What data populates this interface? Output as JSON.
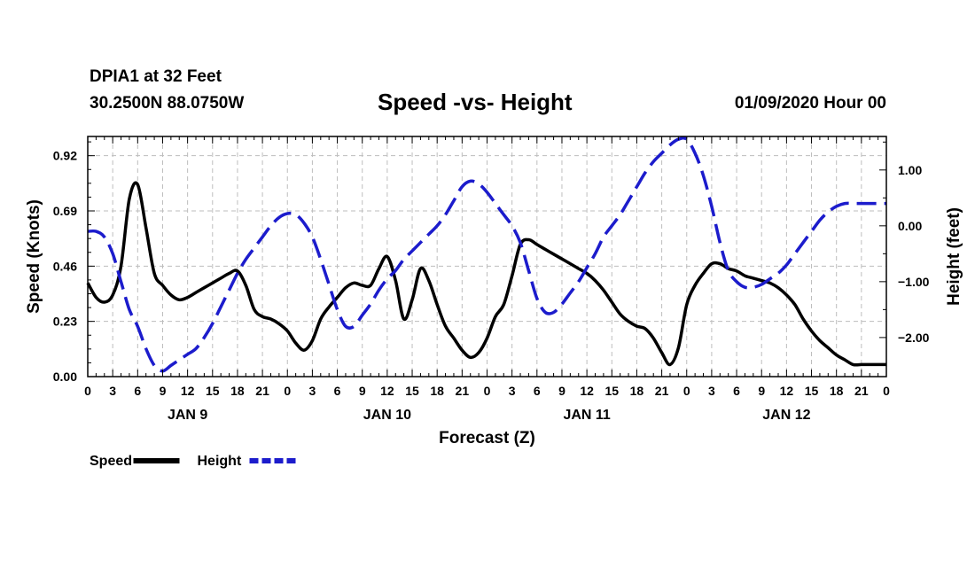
{
  "header": {
    "station": "DPIA1 at 32 Feet",
    "coords": "30.2500N 88.0750W",
    "title": "Speed -vs- Height",
    "timestamp": "01/09/2020 Hour 00"
  },
  "chart_data": {
    "type": "line",
    "title": "Speed -vs- Height",
    "xlabel": "Forecast (Z)",
    "ylabel_left": "Speed (Knots)",
    "ylabel_right": "Height (feet)",
    "x_range_hours": [
      0,
      96
    ],
    "y_left_range": [
      0,
      1.0
    ],
    "y_right_range": [
      -2.7,
      1.6
    ],
    "y_left_ticks": [
      0.0,
      0.23,
      0.46,
      0.69,
      0.92
    ],
    "y_left_tick_labels": [
      "0.00",
      "0.23",
      "0.46",
      "0.69",
      "0.92"
    ],
    "y_right_ticks": [
      1.0,
      0.0,
      -1.0,
      -2.0
    ],
    "y_right_tick_labels": [
      "1.00",
      "0.00",
      "−1.00",
      "−2.00"
    ],
    "x_tick_labels": [
      "0",
      "3",
      "6",
      "9",
      "12",
      "15",
      "18",
      "21",
      "0",
      "3",
      "6",
      "9",
      "12",
      "15",
      "18",
      "21",
      "0",
      "3",
      "6",
      "9",
      "12",
      "15",
      "18",
      "21",
      "0",
      "3",
      "6",
      "9",
      "12",
      "15",
      "18",
      "21",
      "0"
    ],
    "day_labels": [
      "JAN 9",
      "JAN 10",
      "JAN 11",
      "JAN 12"
    ],
    "grid": true,
    "legend_placement": "bottom-left",
    "series": [
      {
        "name": "Speed",
        "axis": "left",
        "color": "#000000",
        "style": "solid",
        "x": [
          0,
          1,
          2,
          3,
          4,
          5,
          6,
          7,
          8,
          9,
          10,
          11,
          12,
          13,
          14,
          15,
          16,
          17,
          18,
          19,
          20,
          21,
          22,
          23,
          24,
          25,
          26,
          27,
          28,
          29,
          30,
          31,
          32,
          33,
          34,
          35,
          36,
          37,
          38,
          39,
          40,
          41,
          42,
          43,
          44,
          45,
          46,
          47,
          48,
          49,
          50,
          51,
          52,
          53,
          54,
          55,
          56,
          57,
          58,
          59,
          60,
          61,
          62,
          63,
          64,
          65,
          66,
          67,
          68,
          69,
          70,
          71,
          72,
          73,
          74,
          75,
          76,
          77,
          78,
          79,
          80,
          81,
          82,
          83,
          84,
          85,
          86,
          87,
          88,
          89,
          90,
          91,
          92,
          93,
          94,
          95,
          96
        ],
        "values": [
          0.39,
          0.33,
          0.31,
          0.34,
          0.46,
          0.74,
          0.8,
          0.62,
          0.43,
          0.38,
          0.34,
          0.32,
          0.33,
          0.35,
          0.37,
          0.39,
          0.41,
          0.43,
          0.44,
          0.38,
          0.28,
          0.25,
          0.24,
          0.22,
          0.19,
          0.14,
          0.11,
          0.15,
          0.24,
          0.29,
          0.33,
          0.37,
          0.39,
          0.38,
          0.38,
          0.45,
          0.5,
          0.4,
          0.24,
          0.32,
          0.45,
          0.4,
          0.3,
          0.21,
          0.16,
          0.11,
          0.08,
          0.1,
          0.16,
          0.25,
          0.3,
          0.42,
          0.55,
          0.57,
          0.55,
          0.53,
          0.51,
          0.49,
          0.47,
          0.45,
          0.43,
          0.4,
          0.36,
          0.31,
          0.26,
          0.23,
          0.21,
          0.2,
          0.16,
          0.1,
          0.05,
          0.12,
          0.3,
          0.38,
          0.43,
          0.47,
          0.47,
          0.45,
          0.44,
          0.42,
          0.41,
          0.4,
          0.39,
          0.37,
          0.34,
          0.3,
          0.24,
          0.19,
          0.15,
          0.12,
          0.09,
          0.07,
          0.05,
          0.05,
          0.05,
          0.05,
          0.05
        ]
      },
      {
        "name": "Height",
        "axis": "right",
        "color": "#1c1ccc",
        "style": "dashed",
        "x": [
          0,
          1,
          2,
          3,
          4,
          5,
          6,
          7,
          8,
          9,
          10,
          11,
          12,
          13,
          14,
          15,
          16,
          17,
          18,
          19,
          20,
          21,
          22,
          23,
          24,
          25,
          26,
          27,
          28,
          29,
          30,
          31,
          32,
          33,
          34,
          35,
          36,
          37,
          38,
          39,
          40,
          41,
          42,
          43,
          44,
          45,
          46,
          47,
          48,
          49,
          50,
          51,
          52,
          53,
          54,
          55,
          56,
          57,
          58,
          59,
          60,
          61,
          62,
          63,
          64,
          65,
          66,
          67,
          68,
          69,
          70,
          71,
          72,
          73,
          74,
          75,
          76,
          77,
          78,
          79,
          80,
          81,
          82,
          83,
          84,
          85,
          86,
          87,
          88,
          89,
          90,
          91,
          92,
          93,
          94,
          95,
          96
        ],
        "values": [
          -0.1,
          -0.1,
          -0.2,
          -0.5,
          -1.0,
          -1.5,
          -1.8,
          -2.2,
          -2.5,
          -2.6,
          -2.5,
          -2.4,
          -2.3,
          -2.2,
          -2.0,
          -1.75,
          -1.45,
          -1.15,
          -0.85,
          -0.6,
          -0.4,
          -0.2,
          0.0,
          0.15,
          0.22,
          0.2,
          0.05,
          -0.2,
          -0.6,
          -1.05,
          -1.5,
          -1.8,
          -1.8,
          -1.6,
          -1.4,
          -1.15,
          -0.95,
          -0.8,
          -0.6,
          -0.45,
          -0.3,
          -0.15,
          0.0,
          0.2,
          0.45,
          0.7,
          0.8,
          0.75,
          0.6,
          0.4,
          0.2,
          0.0,
          -0.3,
          -0.8,
          -1.3,
          -1.55,
          -1.55,
          -1.4,
          -1.2,
          -1.0,
          -0.75,
          -0.5,
          -0.2,
          0.0,
          0.2,
          0.45,
          0.7,
          0.95,
          1.15,
          1.3,
          1.45,
          1.55,
          1.55,
          1.3,
          0.9,
          0.35,
          -0.3,
          -0.8,
          -1.0,
          -1.1,
          -1.1,
          -1.05,
          -0.95,
          -0.85,
          -0.7,
          -0.5,
          -0.3,
          -0.1,
          0.1,
          0.25,
          0.35,
          0.4,
          0.4,
          0.4,
          0.4,
          0.4,
          0.4
        ]
      }
    ],
    "legend": [
      {
        "label": "Speed",
        "color": "#000000",
        "style": "solid"
      },
      {
        "label": "Height",
        "color": "#1c1ccc",
        "style": "dashed"
      }
    ]
  }
}
